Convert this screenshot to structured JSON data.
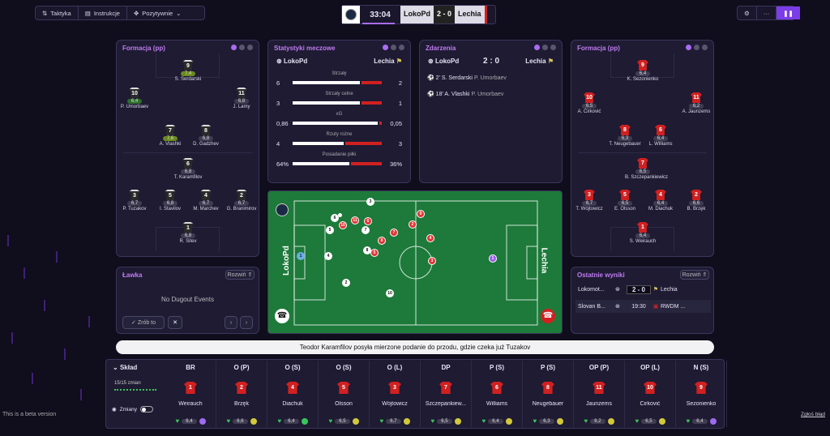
{
  "toolbar": {
    "tactics": "Taktyka",
    "instructions": "Instrukcje",
    "mentality": "Pozytywnie"
  },
  "score": {
    "time": "33:04",
    "home": "LokoPd",
    "score": "2 - 0",
    "away": "Lechia"
  },
  "home_formation": {
    "title": "Formacja (pp)",
    "players": [
      {
        "num": "9",
        "name": "S. Serdarski",
        "rating": "7,4",
        "cls": "best"
      },
      {
        "num": "10",
        "name": "P. Umorbaev",
        "rating": "6,4",
        "cls": "good"
      },
      {
        "num": "11",
        "name": "J. Lamy",
        "rating": "6,8",
        "cls": ""
      },
      {
        "num": "7",
        "name": "A. Vlashki",
        "rating": "7,6",
        "cls": "best"
      },
      {
        "num": "8",
        "name": "D. Gadzhev",
        "rating": "6,8",
        "cls": ""
      },
      {
        "num": "6",
        "name": "T. Karamfilov",
        "rating": "6,8",
        "cls": ""
      },
      {
        "num": "3",
        "name": "P. Tuzakov",
        "rating": "6,7",
        "cls": ""
      },
      {
        "num": "5",
        "name": "I. Stavilov",
        "rating": "6,8",
        "cls": ""
      },
      {
        "num": "4",
        "name": "M. Marchev",
        "rating": "6,7",
        "cls": ""
      },
      {
        "num": "2",
        "name": "G. Branimirov",
        "rating": "6,7",
        "cls": ""
      },
      {
        "num": "1",
        "name": "R. Sitev",
        "rating": "6,8",
        "cls": ""
      }
    ]
  },
  "stats": {
    "title": "Statystyki meczowe",
    "home": "LokoPd",
    "away": "Lechia",
    "rows": [
      {
        "label": "Strzały",
        "home": "6",
        "away": "2",
        "hf": 0.75
      },
      {
        "label": "Strzały celne",
        "home": "3",
        "away": "1",
        "hf": 0.75
      },
      {
        "label": "xG",
        "home": "0,86",
        "away": "0,05",
        "hf": 0.95
      },
      {
        "label": "Rzuty rożne",
        "home": "4",
        "away": "3",
        "hf": 0.57
      },
      {
        "label": "Posiadanie piłki",
        "home": "64%",
        "away": "36%",
        "hf": 0.64
      }
    ]
  },
  "events": {
    "title": "Zdarzenia",
    "home": "LokoPd",
    "score": "2 : 0",
    "away": "Lechia",
    "items": [
      {
        "min": "2'",
        "scorer": "S. Serdarski",
        "assist": "P. Umorbaev"
      },
      {
        "min": "18'",
        "scorer": "A. Vlashki",
        "assist": "P. Umorbaev"
      }
    ]
  },
  "away_formation": {
    "title": "Formacja (pp)",
    "players": [
      {
        "num": "9",
        "name": "K. Sezonienko",
        "rating": "6,4"
      },
      {
        "num": "10",
        "name": "A. Ćirković",
        "rating": "6,5"
      },
      {
        "num": "11",
        "name": "A. Jaunzems",
        "rating": "6,2"
      },
      {
        "num": "8",
        "name": "T. Neugebauer",
        "rating": "6,3"
      },
      {
        "num": "6",
        "name": "L. Williams",
        "rating": "6,4"
      },
      {
        "num": "7",
        "name": "B. Szczepankiewicz",
        "rating": "6,5"
      },
      {
        "num": "3",
        "name": "T. Wójtowicz",
        "rating": "6,7"
      },
      {
        "num": "5",
        "name": "E. Olsson",
        "rating": "6,5"
      },
      {
        "num": "4",
        "name": "M. Diachuk",
        "rating": "6,4"
      },
      {
        "num": "2",
        "name": "B. Brzęk",
        "rating": "6,6"
      },
      {
        "num": "1",
        "name": "S. Weirauch",
        "rating": "6,4"
      }
    ]
  },
  "bench": {
    "title": "Ławka",
    "toggle": "Rozwiń",
    "empty": "No Dugout Events",
    "sub_btn": "Zrób to"
  },
  "results": {
    "title": "Ostatnie wyniki",
    "toggle": "Rozwiń",
    "rows": [
      {
        "home": "Lokomot...",
        "mid": "2 - 0",
        "away": "Lechia"
      },
      {
        "home": "Slovan B...",
        "mid": "19:30",
        "away": "RWDM ..."
      }
    ]
  },
  "pitch": {
    "home_label": "LokoPd",
    "away_label": "Lechia"
  },
  "commentary": "Teodor Karamfilov posyła mierzone podanie do przodu, gdzie czeka już Tuzakov",
  "squad": {
    "title": "Skład",
    "subs": "15/15 zmian",
    "subs_label": "Zmiany",
    "cols": [
      {
        "pos": "BR",
        "num": "1",
        "name": "Weirauch",
        "rating": "6,4"
      },
      {
        "pos": "O (P)",
        "num": "2",
        "name": "Brzęk",
        "rating": "6,6"
      },
      {
        "pos": "O (S)",
        "num": "4",
        "name": "Diachuk",
        "rating": "6,4"
      },
      {
        "pos": "O (S)",
        "num": "5",
        "name": "Olsson",
        "rating": "6,5"
      },
      {
        "pos": "O (L)",
        "num": "3",
        "name": "Wójtowicz",
        "rating": "6,7"
      },
      {
        "pos": "DP",
        "num": "7",
        "name": "Szczepankiew...",
        "rating": "6,5"
      },
      {
        "pos": "P (S)",
        "num": "6",
        "name": "Williams",
        "rating": "6,4"
      },
      {
        "pos": "P (S)",
        "num": "8",
        "name": "Neugebauer",
        "rating": "6,3"
      },
      {
        "pos": "OP (P)",
        "num": "11",
        "name": "Jaunzems",
        "rating": "6,2"
      },
      {
        "pos": "OP (L)",
        "num": "10",
        "name": "Ćirković",
        "rating": "6,5"
      },
      {
        "pos": "N (S)",
        "num": "9",
        "name": "Sezonienko",
        "rating": "6,4"
      }
    ]
  },
  "footer": {
    "beta": "This is a beta version",
    "report": "Zgłoś błąd"
  },
  "colors": {
    "accent": "#a86cf0",
    "pitch": "#1d7a3a",
    "home": "#ffffff",
    "away": "#e23535"
  }
}
